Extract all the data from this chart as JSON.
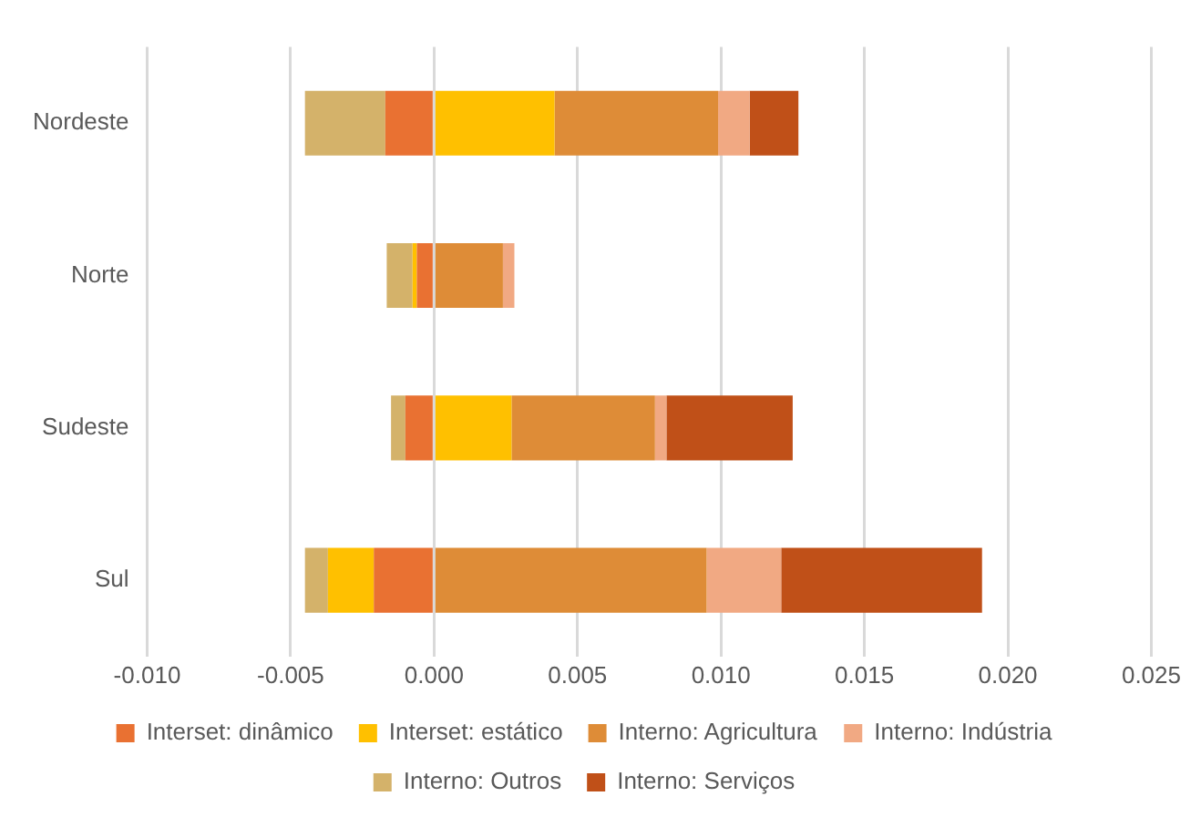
{
  "chart_data": {
    "type": "bar",
    "orientation": "horizontal",
    "stacked": true,
    "categories": [
      "Nordeste",
      "Norte",
      "Sudeste",
      "Sul"
    ],
    "series": [
      {
        "name": "Interset: dinâmico",
        "color": "#e97132",
        "values": [
          -0.0017,
          -0.0006,
          -0.001,
          -0.0021
        ]
      },
      {
        "name": "Interset: estático",
        "color": "#ffc000",
        "values": [
          0.0042,
          -0.00015,
          0.0027,
          -0.0016
        ]
      },
      {
        "name": "Interno: Agricultura",
        "color": "#de8c37",
        "values": [
          0.0057,
          0.0024,
          0.005,
          0.0095
        ]
      },
      {
        "name": "Interno: Indústria",
        "color": "#f1a983",
        "values": [
          0.0011,
          0.0004,
          0.0004,
          0.0026
        ]
      },
      {
        "name": "Interno: Outros",
        "color": "#d4b26a",
        "values": [
          -0.0028,
          -0.0009,
          -0.0005,
          -0.0008
        ]
      },
      {
        "name": "Interno: Serviços",
        "color": "#c05018",
        "values": [
          0.0017,
          0,
          0.0044,
          0.007
        ]
      }
    ],
    "xlim": [
      -0.01,
      0.025
    ],
    "xticks": [
      {
        "value": -0.01,
        "label": "-0.010"
      },
      {
        "value": -0.005,
        "label": "-0.005"
      },
      {
        "value": 0,
        "label": "0.000"
      },
      {
        "value": 0.005,
        "label": "0.005"
      },
      {
        "value": 0.01,
        "label": "0.010"
      },
      {
        "value": 0.015,
        "label": "0.015"
      },
      {
        "value": 0.02,
        "label": "0.020"
      },
      {
        "value": 0.025,
        "label": "0.025"
      }
    ],
    "grid": "x",
    "legend": "bottom"
  }
}
